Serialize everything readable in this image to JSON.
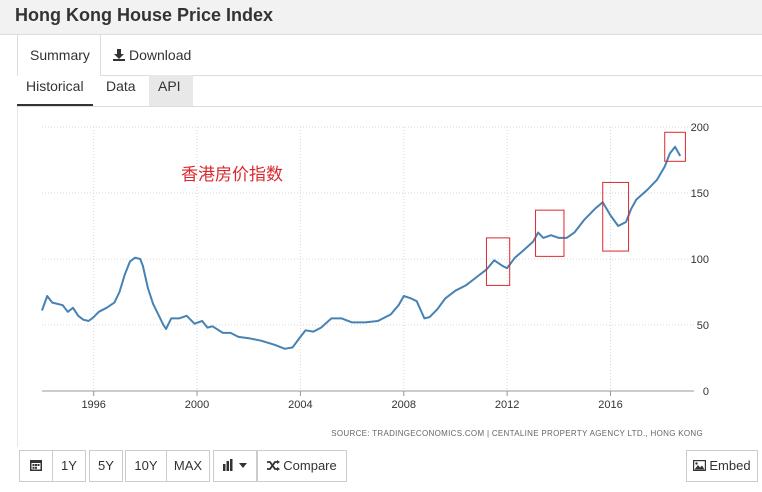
{
  "page": {
    "title": "Hong Kong House Price Index"
  },
  "tabs": {
    "summary": "Summary",
    "download": "Download"
  },
  "subtabs": {
    "historical": "Historical",
    "data": "Data",
    "api": "API"
  },
  "toolbar": {
    "range_1y": "1Y",
    "range_5y": "5Y",
    "range_10y": "10Y",
    "range_max": "MAX",
    "compare": "Compare",
    "embed": "Embed"
  },
  "chart_data": {
    "type": "line",
    "title": "Hong Kong House Price Index",
    "annotation": "香港房价指数",
    "source": "SOURCE: TRADINGECONOMICS.COM | CENTALINE PROPERTY AGENCY LTD., HONG KONG",
    "xlim": [
      1994.0,
      2019.0
    ],
    "ylim": [
      0,
      200
    ],
    "x_ticks": [
      "1996",
      "2000",
      "2004",
      "2008",
      "2012",
      "2016"
    ],
    "y_ticks": [
      "0",
      "50",
      "100",
      "150",
      "200"
    ],
    "line_color": "#4682b4",
    "highlight_color": "#d9292f",
    "series": [
      {
        "name": "House Price Index",
        "points": [
          [
            1994.0,
            61
          ],
          [
            1994.2,
            72
          ],
          [
            1994.4,
            67
          ],
          [
            1994.6,
            66
          ],
          [
            1994.8,
            65
          ],
          [
            1995.0,
            60
          ],
          [
            1995.2,
            63
          ],
          [
            1995.4,
            57
          ],
          [
            1995.6,
            54
          ],
          [
            1995.8,
            53
          ],
          [
            1996.0,
            56
          ],
          [
            1996.2,
            60
          ],
          [
            1996.5,
            63
          ],
          [
            1996.8,
            67
          ],
          [
            1997.0,
            75
          ],
          [
            1997.2,
            88
          ],
          [
            1997.4,
            98
          ],
          [
            1997.6,
            101
          ],
          [
            1997.8,
            100
          ],
          [
            1997.9,
            95
          ],
          [
            1998.1,
            78
          ],
          [
            1998.3,
            66
          ],
          [
            1998.5,
            58
          ],
          [
            1998.7,
            50
          ],
          [
            1998.8,
            47
          ],
          [
            1999.0,
            55
          ],
          [
            1999.3,
            55
          ],
          [
            1999.6,
            57
          ],
          [
            1999.9,
            51
          ],
          [
            2000.2,
            53
          ],
          [
            2000.4,
            48
          ],
          [
            2000.6,
            49
          ],
          [
            2001.0,
            44
          ],
          [
            2001.3,
            44
          ],
          [
            2001.6,
            41
          ],
          [
            2002.0,
            40
          ],
          [
            2002.5,
            38
          ],
          [
            2003.0,
            35
          ],
          [
            2003.4,
            32
          ],
          [
            2003.7,
            33
          ],
          [
            2004.0,
            41
          ],
          [
            2004.2,
            46
          ],
          [
            2004.5,
            45
          ],
          [
            2004.8,
            48
          ],
          [
            2005.2,
            55
          ],
          [
            2005.6,
            55
          ],
          [
            2006.0,
            52
          ],
          [
            2006.5,
            52
          ],
          [
            2007.0,
            53
          ],
          [
            2007.5,
            58
          ],
          [
            2007.8,
            65
          ],
          [
            2008.0,
            72
          ],
          [
            2008.3,
            70
          ],
          [
            2008.5,
            68
          ],
          [
            2008.8,
            55
          ],
          [
            2009.0,
            56
          ],
          [
            2009.3,
            62
          ],
          [
            2009.6,
            70
          ],
          [
            2010.0,
            76
          ],
          [
            2010.4,
            80
          ],
          [
            2010.8,
            86
          ],
          [
            2011.2,
            92
          ],
          [
            2011.5,
            99
          ],
          [
            2011.8,
            95
          ],
          [
            2012.0,
            93
          ],
          [
            2012.3,
            101
          ],
          [
            2012.6,
            106
          ],
          [
            2013.0,
            113
          ],
          [
            2013.2,
            120
          ],
          [
            2013.4,
            116
          ],
          [
            2013.7,
            118
          ],
          [
            2014.0,
            116
          ],
          [
            2014.3,
            116
          ],
          [
            2014.6,
            120
          ],
          [
            2015.0,
            130
          ],
          [
            2015.4,
            138
          ],
          [
            2015.7,
            143
          ],
          [
            2016.0,
            133
          ],
          [
            2016.3,
            125
          ],
          [
            2016.6,
            128
          ],
          [
            2016.8,
            138
          ],
          [
            2017.0,
            145
          ],
          [
            2017.4,
            152
          ],
          [
            2017.8,
            160
          ],
          [
            2018.1,
            170
          ],
          [
            2018.3,
            180
          ],
          [
            2018.5,
            185
          ],
          [
            2018.7,
            178
          ]
        ]
      }
    ],
    "highlights": [
      {
        "x0": 2011.2,
        "x1": 2012.1,
        "y0": 80,
        "y1": 116
      },
      {
        "x0": 2013.1,
        "x1": 2014.2,
        "y0": 102,
        "y1": 137
      },
      {
        "x0": 2015.7,
        "x1": 2016.7,
        "y0": 106,
        "y1": 158
      },
      {
        "x0": 2018.1,
        "x1": 2018.9,
        "y0": 174,
        "y1": 196
      }
    ]
  }
}
